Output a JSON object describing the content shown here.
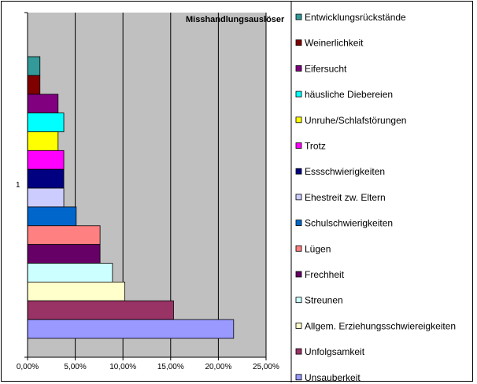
{
  "chart_data": {
    "type": "bar",
    "orientation": "horizontal",
    "title": "Misshandlungsauslöser",
    "category_label": "1",
    "xlim": [
      0,
      25
    ],
    "x_ticks": [
      "0,00%",
      "5,00%",
      "10,00%",
      "15,00%",
      "20,00%",
      "25,00%"
    ],
    "grid": true,
    "legend_position": "right",
    "plot_background": "#c0c0c0",
    "series": [
      {
        "name": "Entwicklungsrückstände",
        "value": 1.3,
        "color": "#339999"
      },
      {
        "name": "Weinerlichkeit",
        "value": 1.3,
        "color": "#800000"
      },
      {
        "name": "Eifersucht",
        "value": 3.2,
        "color": "#800080"
      },
      {
        "name": "häusliche Diebereien",
        "value": 3.8,
        "color": "#00ffff"
      },
      {
        "name": "Unruhe/Schlafstörungen",
        "value": 3.2,
        "color": "#ffff00"
      },
      {
        "name": "Trotz",
        "value": 3.8,
        "color": "#ff00ff"
      },
      {
        "name": "Essschwierigkeiten",
        "value": 3.8,
        "color": "#000080"
      },
      {
        "name": "Ehestreit zw. Eltern",
        "value": 3.8,
        "color": "#ccccff"
      },
      {
        "name": "Schulschwierigkeiten",
        "value": 5.1,
        "color": "#0066cc"
      },
      {
        "name": "Lügen",
        "value": 7.6,
        "color": "#ff8080"
      },
      {
        "name": "Frechheit",
        "value": 7.6,
        "color": "#660066"
      },
      {
        "name": "Streunen",
        "value": 8.9,
        "color": "#ccffff"
      },
      {
        "name": "Allgem. Erziehungsschwiereigkeiten",
        "value": 10.2,
        "color": "#ffffcc"
      },
      {
        "name": "Unfolgsamkeit",
        "value": 15.3,
        "color": "#993366"
      },
      {
        "name": "Unsauberkeit",
        "value": 21.6,
        "color": "#9999ff"
      }
    ]
  }
}
